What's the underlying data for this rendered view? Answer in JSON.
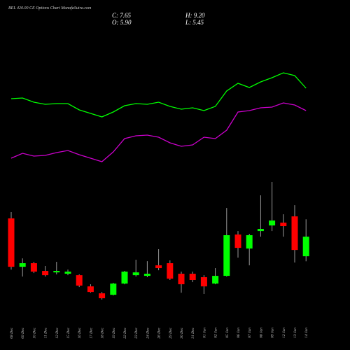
{
  "chart_data": {
    "type": "candlestick",
    "title": "BEL 420.00 CE Options Chart MunafaSutra.com",
    "ohlc_labels": [
      {
        "value": 7.65,
        "label": "C: 7.65"
      },
      {
        "value": 9.2,
        "label": "H: 9.20"
      },
      {
        "value": 5.9,
        "label": "O: 5.90"
      },
      {
        "value": 5.45,
        "label": "L: 5.45"
      }
    ],
    "categories": [
      "08 Dec",
      "09 Dec",
      "10 Dec",
      "11 Dec",
      "12 Dec",
      "15 Dec",
      "16 Dec",
      "17 Dec",
      "18 Dec",
      "19 Dec",
      "22 Dec",
      "23 Dec",
      "24 Dec",
      "26 Dec",
      "29 Dec",
      "30 Dec",
      "31 Dec",
      "01 Jan",
      "02 Jan",
      "05 Jan",
      "06 Jan",
      "07 Jan",
      "08 Jan",
      "09 Jan",
      "12 Jan",
      "13 Jan",
      "14 Jan"
    ],
    "open": [
      9.28,
      4.96,
      5.28,
      4.59,
      4.46,
      4.34,
      4.21,
      3.21,
      2.59,
      2.46,
      3.46,
      4.21,
      4.15,
      5.09,
      5.28,
      4.34,
      4.34,
      4.03,
      3.46,
      4.15,
      7.84,
      6.59,
      8.15,
      8.65,
      8.9,
      9.46,
      5.9
    ],
    "high": [
      9.84,
      5.71,
      5.4,
      5.03,
      5.4,
      4.71,
      4.28,
      3.4,
      2.71,
      3.53,
      4.59,
      5.59,
      5.46,
      6.53,
      5.53,
      4.53,
      4.53,
      4.21,
      4.84,
      10.21,
      8.15,
      7.9,
      11.34,
      12.53,
      9.65,
      10.46,
      9.2
    ],
    "low": [
      4.71,
      4.09,
      4.4,
      4.09,
      4.28,
      4.21,
      3.15,
      2.65,
      2.03,
      2.4,
      3.4,
      4.09,
      4.03,
      4.65,
      3.78,
      2.65,
      3.59,
      2.53,
      3.4,
      4.09,
      5.78,
      5.09,
      7.65,
      8.15,
      7.65,
      5.34,
      5.45
    ],
    "close": [
      4.96,
      5.28,
      4.53,
      4.21,
      4.59,
      4.53,
      3.28,
      2.71,
      2.15,
      3.46,
      4.53,
      4.46,
      4.34,
      4.84,
      3.9,
      3.4,
      3.78,
      3.21,
      4.15,
      7.78,
      6.65,
      7.78,
      8.34,
      9.09,
      8.59,
      6.46,
      7.65
    ],
    "up_color": "#00ff00",
    "down_color": "#ff0000",
    "lines": [
      {
        "color": "#00ff00",
        "values": [
          359,
          360,
          354,
          351,
          352,
          352,
          343,
          338,
          333,
          340,
          349,
          352,
          351,
          354,
          348,
          344,
          346,
          342,
          348,
          370,
          381,
          375,
          383,
          389,
          396,
          392,
          374
        ]
      },
      {
        "color": "#cc00cc",
        "values": [
          274,
          281,
          277,
          278,
          282,
          285,
          279,
          274,
          269,
          283,
          302,
          306,
          307,
          304,
          296,
          291,
          293,
          304,
          302,
          314,
          340,
          342,
          346,
          347,
          353,
          350,
          342
        ]
      }
    ]
  }
}
